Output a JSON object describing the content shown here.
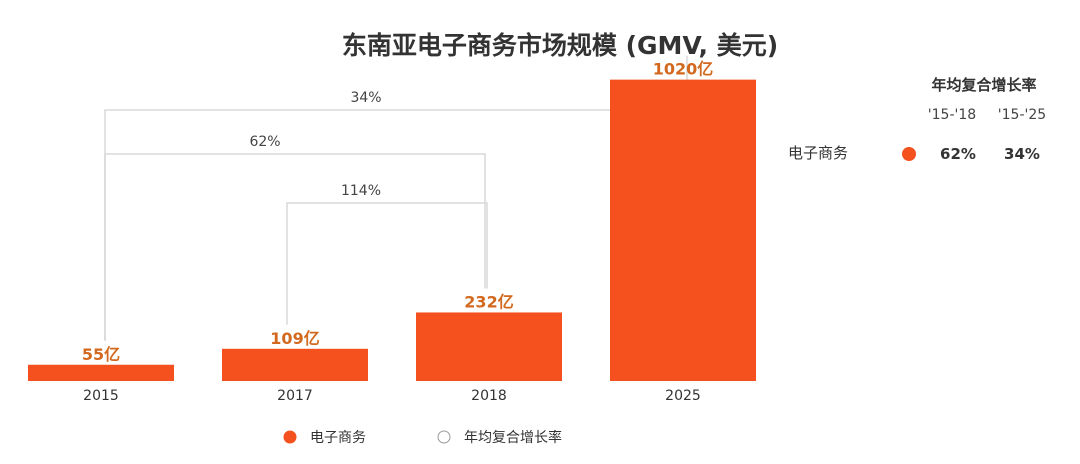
{
  "chart_data": {
    "type": "bar",
    "title": "东南亚电子商务市场规模 (GMV, 美元)",
    "categories": [
      "2015",
      "2017",
      "2018",
      "2025"
    ],
    "series": [
      {
        "name": "电子商务",
        "values": [
          55,
          109,
          232,
          1020
        ],
        "labels": [
          "55亿",
          "109亿",
          "232亿",
          "1020亿"
        ]
      }
    ],
    "ylim": [
      0,
      1100
    ],
    "grid": false,
    "legend_position": "bottom-center",
    "cagr_brackets": [
      {
        "from": "2015",
        "to": "2025",
        "label": "34%"
      },
      {
        "from": "2015",
        "to": "2018",
        "label": "62%"
      },
      {
        "from": "2017",
        "to": "2018",
        "label": "114%"
      }
    ],
    "cagr_table": {
      "header": "年均复合增长率",
      "columns": [
        "'15-'18",
        "'15-'25"
      ],
      "rows": [
        {
          "name": "电子商务",
          "values": [
            "62%",
            "34%"
          ]
        }
      ]
    },
    "legend": [
      "电子商务",
      "年均复合增长率"
    ]
  },
  "colors": {
    "bar": "#F4511E",
    "label": "#D2691E",
    "bracket": "#D8D8D8",
    "text": "#333333"
  }
}
